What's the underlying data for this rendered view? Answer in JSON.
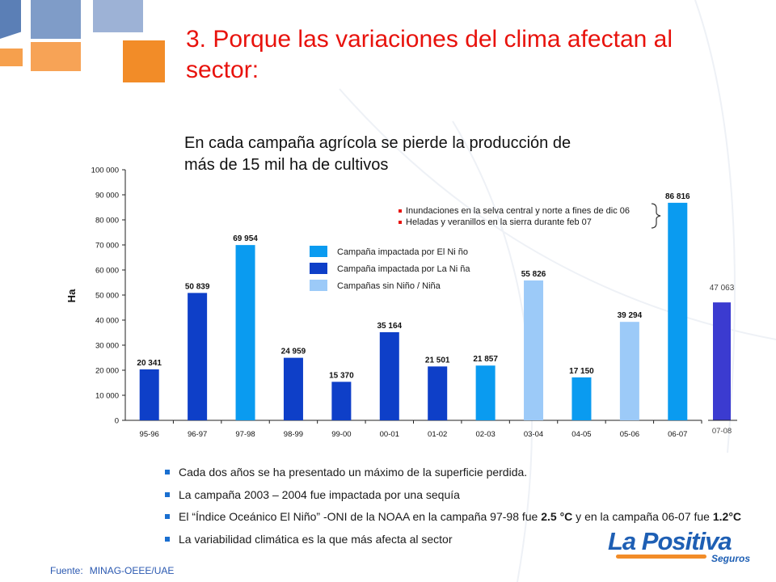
{
  "title": "3. Porque las variaciones del clima afectan al sector:",
  "subtitle": "En cada campaña agrícola se pierde la producción de más de 15 mil ha de cultivos",
  "colors": {
    "el_nino": "#0a9bf0",
    "la_nina": "#0e3fc8",
    "neutral": "#9ccaf8",
    "partial": "#3b3bd0",
    "title": "#e8120c"
  },
  "chart_data": {
    "type": "bar",
    "ylabel": "Ha",
    "ylim": [
      0,
      100000
    ],
    "yticks": [
      "0",
      "10 000",
      "20 000",
      "30 000",
      "40 000",
      "50 000",
      "60 000",
      "70 000",
      "80 000",
      "90 000",
      "100 000"
    ],
    "categories": [
      "95-96",
      "96-97",
      "97-98",
      "98-99",
      "99-00",
      "00-01",
      "01-02",
      "02-03",
      "03-04",
      "04-05",
      "05-06",
      "06-07"
    ],
    "values": [
      20341,
      50839,
      69954,
      24959,
      15370,
      35164,
      21501,
      21857,
      55826,
      17150,
      39294,
      86816
    ],
    "value_labels": [
      "20 341",
      "50 839",
      "69 954",
      "24 959",
      "15 370",
      "35 164",
      "21 501",
      "21 857",
      "55 826",
      "17 150",
      "39 294",
      "86 816"
    ],
    "bar_types": [
      "la_nina",
      "la_nina",
      "el_nino",
      "la_nina",
      "la_nina",
      "la_nina",
      "la_nina",
      "el_nino",
      "neutral",
      "el_nino",
      "neutral",
      "el_nino"
    ],
    "extra": {
      "category": "07-08",
      "value": 47063,
      "label": "47 063"
    },
    "legend": [
      {
        "label": "Campaña impactada por El Ni ño",
        "type": "el_nino"
      },
      {
        "label": "Campaña impactada por La Ni ña",
        "type": "la_nina"
      },
      {
        "label": "Campañas sin Niño / Niña",
        "type": "neutral"
      }
    ],
    "annotations": [
      "Inundaciones en la selva central y norte a fines de dic 06",
      "Heladas y veranillos en la sierra durante  feb 07"
    ]
  },
  "bullets": [
    {
      "parts": [
        {
          "t": "Cada dos años se ha presentado un máximo de la superficie perdida."
        }
      ]
    },
    {
      "parts": [
        {
          "t": "La campaña 2003 – 2004 fue impactada por una sequía"
        }
      ]
    },
    {
      "parts": [
        {
          "t": "El “Índice Oceánico El Niño” -ONI de la NOAA en la campaña 97-98 fue "
        },
        {
          "t": "2.5 °C",
          "b": true
        },
        {
          "t": "  y en la campaña 06-07 fue "
        },
        {
          "t": "1.2°C",
          "b": true
        }
      ]
    },
    {
      "parts": [
        {
          "t": "La variabilidad climática es la que más afecta al sector"
        }
      ]
    }
  ],
  "source": {
    "label": "Fuente:",
    "value": "MINAG-OEEE/UAE"
  },
  "logo": {
    "main": "La Positiva",
    "sub": "Seguros"
  }
}
